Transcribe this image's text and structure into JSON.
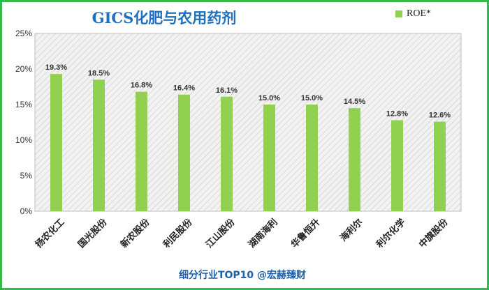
{
  "chart_data": {
    "type": "bar",
    "title": "GICS化肥与农用药剂",
    "categories": [
      "扬农化工",
      "国光股份",
      "新农股份",
      "利民股份",
      "江山股份",
      "湖南海利",
      "华鲁恒升",
      "海利尔",
      "利尔化学",
      "中旗股份"
    ],
    "series": [
      {
        "name": "ROE*",
        "values": [
          19.3,
          18.5,
          16.8,
          16.4,
          16.1,
          15.0,
          15.0,
          14.5,
          12.8,
          12.6
        ],
        "color": "#92d050"
      }
    ],
    "data_labels": [
      "19.3%",
      "18.5%",
      "16.8%",
      "16.4%",
      "16.1%",
      "15.0%",
      "15.0%",
      "14.5%",
      "12.8%",
      "12.6%"
    ],
    "y_ticks": [
      "0%",
      "5%",
      "10%",
      "15%",
      "20%",
      "25%"
    ],
    "ylim": [
      0,
      25
    ],
    "legend_position": "top-right",
    "grid": false,
    "plot_background": "diagonal-hatch"
  },
  "footer": "细分行业TOP10 @宏赫臻财",
  "colors": {
    "border": "#35b84a",
    "title": "#1f6fbf",
    "footer": "#1f5fa8",
    "bar": "#92d050"
  }
}
